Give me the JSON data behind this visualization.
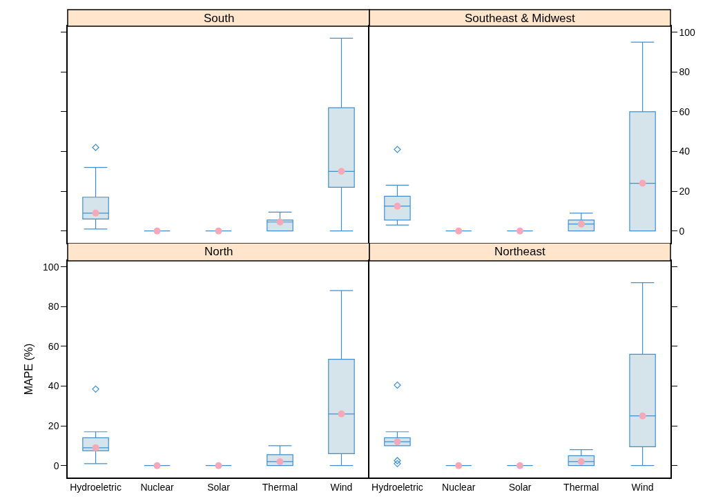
{
  "chart_data": [
    {
      "type": "box",
      "title": "South",
      "categories": [
        "Hydroeletric",
        "Nuclear",
        "Solar",
        "Thermal",
        "Wind"
      ],
      "ylim": [
        -6,
        103
      ],
      "yticks": [
        0,
        20,
        40,
        60,
        80,
        100
      ],
      "tick_labels": false,
      "color": "#3f8fd0",
      "grid": false,
      "boxes": [
        {
          "low": 1,
          "q1": 6,
          "median": 9,
          "q3": 17,
          "high": 32,
          "outliers": [
            42
          ]
        },
        {
          "low": 0,
          "q1": 0,
          "median": 0,
          "q3": 0,
          "high": 0
        },
        {
          "low": 0,
          "q1": 0,
          "median": 0,
          "q3": 0,
          "high": 0
        },
        {
          "low": 0,
          "q1": 0,
          "median": 4.5,
          "q3": 5.5,
          "high": 9.5
        },
        {
          "low": 0,
          "q1": 22,
          "median": 30,
          "q3": 62,
          "high": 97
        }
      ],
      "series": [
        {
          "type": "scatter",
          "color": "#f7a8b8",
          "x": [
            "Hydroeletric",
            "Nuclear",
            "Solar",
            "Thermal",
            "Wind"
          ],
          "values": [
            9,
            0,
            0,
            4.5,
            30
          ]
        }
      ]
    },
    {
      "type": "box",
      "title": "Southeast & Midwest",
      "categories": [
        "Hydroeletric",
        "Nuclear",
        "Solar",
        "Thermal",
        "Wind"
      ],
      "ylim": [
        -6,
        103
      ],
      "yticks": [
        0,
        20,
        40,
        60,
        80,
        100
      ],
      "tick_labels": "y",
      "color": "#3f8fd0",
      "grid": false,
      "boxes": [
        {
          "low": 3,
          "q1": 5.5,
          "median": 12.5,
          "q3": 17.5,
          "high": 23,
          "outliers": [
            41
          ]
        },
        {
          "low": 0,
          "q1": 0,
          "median": 0,
          "q3": 0,
          "high": 0
        },
        {
          "low": 0,
          "q1": 0,
          "median": 0,
          "q3": 0,
          "high": 0
        },
        {
          "low": 0,
          "q1": 0,
          "median": 3.5,
          "q3": 5.5,
          "high": 9
        },
        {
          "low": 0,
          "q1": 0,
          "median": 24,
          "q3": 60,
          "high": 95
        }
      ],
      "series": [
        {
          "type": "scatter",
          "color": "#f7a8b8",
          "x": [
            "Hydroeletric",
            "Nuclear",
            "Solar",
            "Thermal",
            "Wind"
          ],
          "values": [
            12.5,
            0,
            0,
            3.5,
            24
          ]
        }
      ]
    },
    {
      "type": "box",
      "title": "North",
      "ylabel": "MAPE (%)",
      "categories": [
        "Hydroeletric",
        "Nuclear",
        "Solar",
        "Thermal",
        "Wind"
      ],
      "ylim": [
        -6,
        103
      ],
      "yticks": [
        0,
        20,
        40,
        60,
        80,
        100
      ],
      "color": "#3f8fd0",
      "grid": false,
      "boxes": [
        {
          "low": 1,
          "q1": 7.5,
          "median": 9,
          "q3": 14,
          "high": 17,
          "outliers": [
            38.5
          ]
        },
        {
          "low": 0,
          "q1": 0,
          "median": 0,
          "q3": 0,
          "high": 0
        },
        {
          "low": 0,
          "q1": 0,
          "median": 0,
          "q3": 0,
          "high": 0
        },
        {
          "low": 0,
          "q1": 0,
          "median": 2,
          "q3": 5.5,
          "high": 10
        },
        {
          "low": 0,
          "q1": 6,
          "median": 26,
          "q3": 53.5,
          "high": 88
        }
      ],
      "series": [
        {
          "type": "scatter",
          "color": "#f7a8b8",
          "x": [
            "Hydroeletric",
            "Nuclear",
            "Solar",
            "Thermal",
            "Wind"
          ],
          "values": [
            9,
            0,
            0,
            2,
            26
          ]
        }
      ]
    },
    {
      "type": "box",
      "title": "Northeast",
      "categories": [
        "Hydroeletric",
        "Nuclear",
        "Solar",
        "Thermal",
        "Wind"
      ],
      "ylim": [
        -6,
        103
      ],
      "yticks": [
        0,
        20,
        40,
        60,
        80,
        100
      ],
      "tick_labels": "x",
      "color": "#3f8fd0",
      "grid": false,
      "boxes": [
        {
          "low": 10,
          "q1": 10,
          "median": 12,
          "q3": 14,
          "high": 17,
          "outliers": [
            40.5,
            2.5,
            1
          ]
        },
        {
          "low": 0,
          "q1": 0,
          "median": 0,
          "q3": 0,
          "high": 0
        },
        {
          "low": 0,
          "q1": 0,
          "median": 0,
          "q3": 0,
          "high": 0
        },
        {
          "low": 0,
          "q1": 0,
          "median": 2,
          "q3": 5,
          "high": 8
        },
        {
          "low": 0,
          "q1": 9.5,
          "median": 25,
          "q3": 56,
          "high": 92
        }
      ],
      "series": [
        {
          "type": "scatter",
          "color": "#f7a8b8",
          "x": [
            "Hydroeletric",
            "Nuclear",
            "Solar",
            "Thermal",
            "Wind"
          ],
          "values": [
            12,
            0,
            0,
            2,
            25
          ]
        }
      ]
    }
  ]
}
